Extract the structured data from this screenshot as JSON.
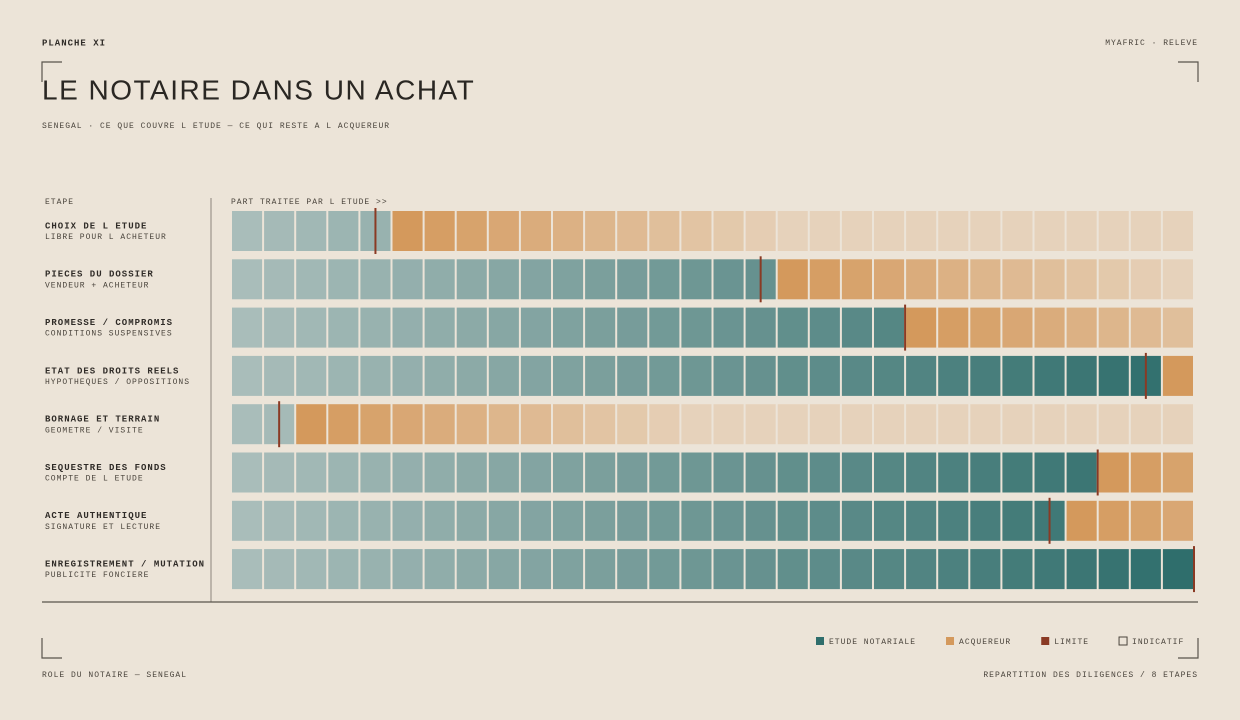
{
  "chart_data": {
    "type": "cells",
    "plate": "PLANCHE XI",
    "source": "MYAFRIC · RELEVE",
    "title": "LE NOTAIRE DANS UN ACHAT",
    "subtitle": "SENEGAL · CE QUE COUVRE L ETUDE — CE QUI RESTE A L ACQUEREUR",
    "row_header": "ETAPE",
    "value_header": "PART TRAITEE PAR L ETUDE  >>",
    "rows": [
      {
        "name": "CHOIX DE L ETUDE",
        "note": "LIBRE POUR L ACHETEUR",
        "value": 15
      },
      {
        "name": "PIECES DU DOSSIER",
        "note": "VENDEUR + ACHETEUR",
        "value": 55
      },
      {
        "name": "PROMESSE / COMPROMIS",
        "note": "CONDITIONS SUSPENSIVES",
        "value": 70
      },
      {
        "name": "ETAT DES DROITS REELS",
        "note": "HYPOTHEQUES / OPPOSITIONS",
        "value": 95
      },
      {
        "name": "BORNAGE ET TERRAIN",
        "note": "GEOMETRE / VISITE",
        "value": 5
      },
      {
        "name": "SEQUESTRE DES FONDS",
        "note": "COMPTE DE L ETUDE",
        "value": 90
      },
      {
        "name": "ACTE AUTHENTIQUE",
        "note": "SIGNATURE ET LECTURE",
        "value": 85
      },
      {
        "name": "ENREGISTREMENT / MUTATION",
        "note": "PUBLICITE FONCIERE",
        "value": 100
      }
    ],
    "xlim": [
      0,
      100
    ],
    "legend": [
      {
        "label": "ETUDE NOTARIALE",
        "color": "#2f6e6c"
      },
      {
        "label": "ACQUEREUR",
        "color": "#d4995c"
      },
      {
        "label": "LIMITE",
        "color": "#8a3a24"
      },
      {
        "label": "INDICATIF",
        "color": "#e6d2bb"
      }
    ],
    "footer_left": "ROLE DU NOTAIRE — SENEGAL",
    "footer_right": "REPARTITION DES DILIGENCES / 8 ETAPES"
  }
}
